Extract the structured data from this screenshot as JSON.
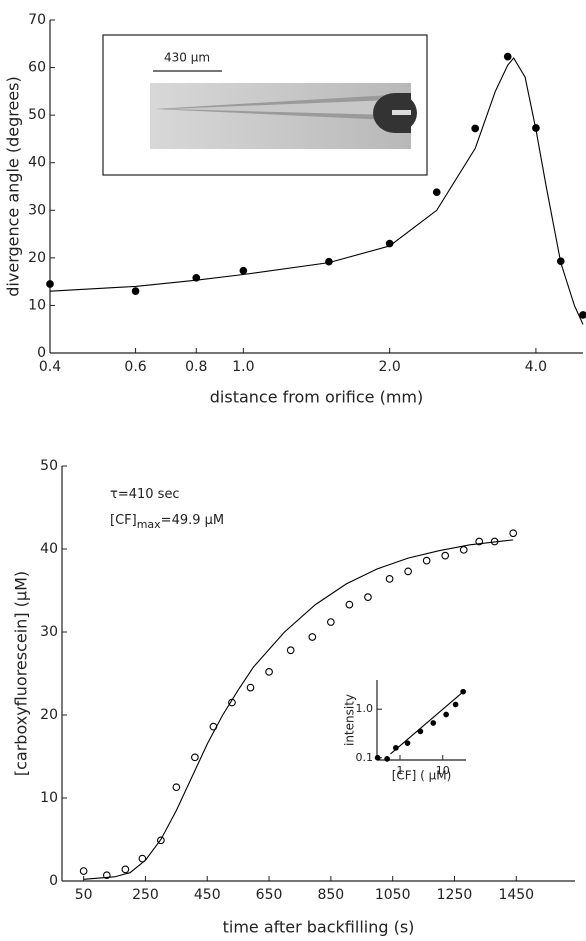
{
  "chart_data": [
    {
      "type": "scatter",
      "xlabel": "distance from orifice (mm)",
      "ylabel": "divergence angle (degrees)",
      "inset_label": "430 μm",
      "xscale": "log",
      "xlim": [
        0.4,
        5.0
      ],
      "ylim": [
        0,
        70
      ],
      "xticks": [
        0.4,
        0.6,
        0.8,
        {
          "value": 1,
          "label": "1.0"
        },
        {
          "value": 2,
          "label": "2.0"
        },
        {
          "value": 4,
          "label": "4.0"
        }
      ],
      "yticks": [
        0,
        10,
        20,
        30,
        40,
        50,
        60,
        70
      ],
      "series": [
        {
          "style": "points",
          "marker": "filled",
          "color": "#000000",
          "x": [
            0.4,
            0.6,
            0.8,
            1.0,
            1.5,
            2.0,
            2.5,
            3.0,
            3.5,
            4.0,
            4.5,
            5.0
          ],
          "values": [
            14.5,
            13,
            15.8,
            17.3,
            19.2,
            23,
            33.8,
            47.2,
            62.3,
            47.3,
            19.3,
            8
          ]
        },
        {
          "style": "line",
          "color": "#000000",
          "x": [
            0.4,
            0.6,
            0.8,
            1.0,
            1.5,
            2.0,
            2.5,
            3.0,
            3.3,
            3.5,
            3.6,
            3.8,
            4.0,
            4.2,
            4.5,
            4.8,
            5.0
          ],
          "values": [
            13,
            14,
            15.3,
            16.5,
            19,
            22.5,
            30,
            43,
            55,
            60.5,
            62,
            58,
            47,
            35,
            19,
            10,
            6
          ]
        }
      ]
    },
    {
      "type": "scatter",
      "xlabel": "time after backfilling (s)",
      "ylabel": "[carboxyfluorescein] (μM)",
      "annotations": [
        {
          "text": "τ=410 sec"
        },
        {
          "text": "[CF]",
          "sub": "max",
          "suffix": "=49.9 μM"
        }
      ],
      "xlim": [
        -20,
        1640
      ],
      "ylim": [
        0,
        50
      ],
      "xticks": [
        50,
        250,
        450,
        650,
        850,
        1050,
        1250,
        1450
      ],
      "yticks": [
        0,
        10,
        20,
        30,
        40,
        50
      ],
      "series": [
        {
          "style": "points",
          "marker": "open",
          "color": "#000000",
          "x": [
            50,
            125,
            185,
            240,
            300,
            350,
            410,
            470,
            530,
            590,
            650,
            720,
            790,
            850,
            910,
            970,
            1040,
            1100,
            1160,
            1220,
            1280,
            1330,
            1380,
            1440
          ],
          "values": [
            1.2,
            0.7,
            1.4,
            2.7,
            4.9,
            11.3,
            14.9,
            18.6,
            21.5,
            23.3,
            25.2,
            27.8,
            29.4,
            31.2,
            33.3,
            34.2,
            36.4,
            37.3,
            38.6,
            39.2,
            39.9,
            40.9,
            40.9,
            41.9
          ]
        },
        {
          "style": "line",
          "color": "#000000",
          "x": [
            50,
            150,
            200,
            250,
            300,
            350,
            400,
            450,
            500,
            550,
            600,
            700,
            800,
            900,
            1000,
            1100,
            1200,
            1300,
            1440
          ],
          "values": [
            0.2,
            0.5,
            1,
            2.5,
            5,
            8.5,
            12.5,
            16.5,
            20,
            23,
            25.8,
            30,
            33.3,
            35.8,
            37.6,
            38.9,
            39.8,
            40.5,
            41.1
          ]
        }
      ]
    },
    {
      "type": "scatter",
      "xlabel": "[CF] ( μM)",
      "ylabel": "intensity",
      "xscale": "log",
      "yscale": "log",
      "xlim": [
        0.29,
        35
      ],
      "ylim": [
        0.09,
        4
      ],
      "xticks": [
        1,
        10
      ],
      "yticks": [
        0.1,
        {
          "value": 1,
          "label": "1.0"
        }
      ],
      "series": [
        {
          "style": "points",
          "marker": "filled",
          "color": "#000000",
          "x": [
            0.3,
            0.5,
            0.8,
            1.5,
            3,
            6,
            12,
            20,
            30
          ],
          "values": [
            0.1,
            0.095,
            0.16,
            0.2,
            0.35,
            0.52,
            0.78,
            1.25,
            2.3
          ]
        },
        {
          "style": "line",
          "color": "#000000",
          "x": [
            0.6,
            32
          ],
          "values": [
            0.12,
            2.4
          ]
        }
      ]
    }
  ]
}
